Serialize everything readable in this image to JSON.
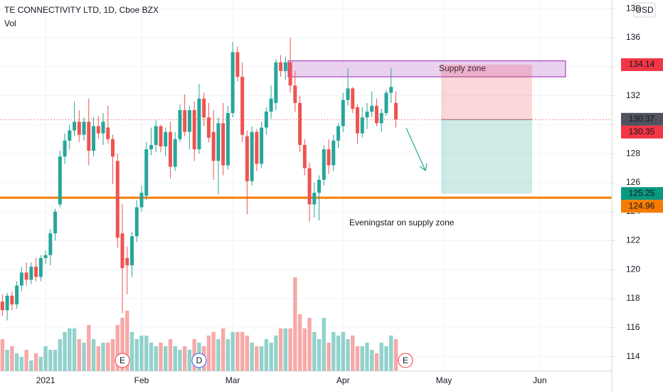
{
  "chart_data": {
    "type": "candlestick",
    "title": "TE CONNECTIVITY LTD, 1D, Cboe BZX",
    "volume_label": "Vol",
    "currency": "USD",
    "up_color": "#26a69a",
    "down_color": "#ef5350",
    "ylim": [
      113.0,
      138.6
    ],
    "yticks": [
      114,
      116,
      118,
      120,
      122,
      124,
      126,
      128,
      130,
      132,
      134,
      136,
      138
    ],
    "xlim": [
      -0.5,
      127
    ],
    "xticks": [
      {
        "value": 9,
        "label": "2021"
      },
      {
        "value": 29,
        "label": "Feb"
      },
      {
        "value": 48,
        "label": "Mar"
      },
      {
        "value": 71,
        "label": "Apr"
      },
      {
        "value": 92,
        "label": "May"
      },
      {
        "value": 112,
        "label": "Jun"
      }
    ],
    "vlim": [
      0,
      400
    ],
    "candles": [
      [
        117.8,
        118.3,
        116.8,
        117.2
      ],
      [
        117.2,
        118.4,
        116.5,
        118.2
      ],
      [
        118.2,
        118.5,
        117.2,
        117.6
      ],
      [
        117.6,
        119.2,
        117.3,
        118.9
      ],
      [
        118.9,
        120.2,
        118.5,
        119.8
      ],
      [
        119.8,
        120.5,
        118.9,
        119.3
      ],
      [
        119.3,
        120.5,
        119,
        120.2
      ],
      [
        120.2,
        120.8,
        119.2,
        119.5
      ],
      [
        119.5,
        121,
        119.2,
        120.8
      ],
      [
        120.8,
        121.3,
        120.4,
        121
      ],
      [
        121,
        122.8,
        120.3,
        122.5
      ],
      [
        122.5,
        124.2,
        122,
        124
      ],
      [
        124.5,
        128.2,
        124.3,
        127.8
      ],
      [
        127.8,
        129.4,
        127.3,
        128.9
      ],
      [
        128.9,
        130,
        128.3,
        129.6
      ],
      [
        129.6,
        131.6,
        129.2,
        130.2
      ],
      [
        130.2,
        131,
        128.8,
        129.3
      ],
      [
        129.3,
        130.5,
        128.9,
        130.2
      ],
      [
        130.2,
        131.8,
        127.2,
        128.2
      ],
      [
        128.2,
        130.5,
        127.8,
        129.9
      ],
      [
        129.9,
        130.6,
        129,
        129.4
      ],
      [
        129.4,
        130.8,
        128.6,
        130.2
      ],
      [
        129.8,
        131.3,
        128.7,
        129
      ],
      [
        129,
        129.3,
        125.9,
        127.8
      ],
      [
        127.5,
        128,
        121.5,
        122.2
      ],
      [
        122.5,
        124.5,
        117,
        120.1
      ],
      [
        120.8,
        121.6,
        118.3,
        120.3
      ],
      [
        120.3,
        122.6,
        119.5,
        122.3
      ],
      [
        122.3,
        124.8,
        121.9,
        124.3
      ],
      [
        124.3,
        125.8,
        124,
        125.3
      ],
      [
        125.1,
        128.8,
        124.8,
        128.3
      ],
      [
        128.3,
        129.8,
        127.9,
        128.6
      ],
      [
        128.6,
        130.3,
        128.1,
        129.9
      ],
      [
        129.9,
        130,
        128.1,
        128.5
      ],
      [
        128.5,
        129.8,
        127.8,
        129.5
      ],
      [
        129.5,
        130.2,
        126.3,
        127.1
      ],
      [
        127.1,
        129.5,
        126.8,
        129
      ],
      [
        129,
        131.4,
        128.8,
        131
      ],
      [
        131,
        132.1,
        129.2,
        129.5
      ],
      [
        129.5,
        131.3,
        128.3,
        131
      ],
      [
        131,
        131.6,
        127.5,
        128.3
      ],
      [
        128.3,
        132.8,
        128,
        131.8
      ],
      [
        131.8,
        132.2,
        129.9,
        130.5
      ],
      [
        130.5,
        131.5,
        128.8,
        129.1
      ],
      [
        129.5,
        131,
        126.2,
        127.5
      ],
      [
        127.5,
        130.5,
        125.2,
        130.1
      ],
      [
        130.1,
        131.5,
        126.5,
        127.2
      ],
      [
        127.2,
        131.3,
        126.9,
        130.8
      ],
      [
        130.8,
        135.7,
        130.5,
        135
      ],
      [
        135,
        135.4,
        133,
        133.3
      ],
      [
        133.3,
        134.3,
        128.8,
        129.3
      ],
      [
        129.2,
        129.6,
        123.8,
        126.1
      ],
      [
        126.1,
        129.9,
        125.8,
        129.5
      ],
      [
        129.5,
        129.7,
        126.8,
        127.3
      ],
      [
        127.3,
        130.2,
        127,
        129.8
      ],
      [
        129.8,
        131.2,
        129.3,
        130.9
      ],
      [
        130.9,
        132.7,
        130.4,
        131.8
      ],
      [
        131.5,
        134.5,
        131,
        134.3
      ],
      [
        134.3,
        134.8,
        133.3,
        133.7
      ],
      [
        133.7,
        134.7,
        133.1,
        134.3
      ],
      [
        134.3,
        136,
        132.2,
        132.7
      ],
      [
        132.7,
        133.7,
        130.9,
        131.5
      ],
      [
        131.5,
        132,
        128.1,
        128.6
      ],
      [
        128.6,
        129,
        126.5,
        127
      ],
      [
        127,
        127.4,
        123.3,
        124.5
      ],
      [
        124.5,
        126,
        123.6,
        125.3
      ],
      [
        125.3,
        126.5,
        123.4,
        126.2
      ],
      [
        126.2,
        128.6,
        125.8,
        128.3
      ],
      [
        128.3,
        129,
        126.6,
        127.2
      ],
      [
        127.2,
        129.3,
        126.8,
        128.9
      ],
      [
        128.9,
        130.1,
        128.4,
        129.9
      ],
      [
        129.9,
        132.2,
        129.5,
        131.7
      ],
      [
        131.7,
        133.9,
        131.3,
        132.5
      ],
      [
        132.5,
        132.6,
        130.8,
        131.1
      ],
      [
        131.2,
        131.4,
        128.7,
        129.4
      ],
      [
        129.4,
        131.2,
        129.1,
        130.5
      ],
      [
        130.5,
        131.5,
        129.7,
        130.9
      ],
      [
        130.9,
        132.3,
        130.5,
        131.3
      ],
      [
        131.3,
        131.8,
        129.9,
        130.1
      ],
      [
        130.1,
        131.1,
        129.5,
        130.8
      ],
      [
        130.8,
        132.4,
        130.6,
        132.2
      ],
      [
        132.2,
        133.9,
        131.5,
        132.6
      ],
      [
        131.5,
        132.3,
        129.8,
        130.35
      ]
    ],
    "volume": [
      45,
      30,
      35,
      25,
      20,
      30,
      15,
      25,
      20,
      35,
      30,
      30,
      45,
      55,
      60,
      60,
      45,
      40,
      65,
      45,
      35,
      40,
      40,
      45,
      65,
      75,
      85,
      55,
      45,
      50,
      50,
      40,
      35,
      40,
      35,
      45,
      35,
      30,
      35,
      30,
      45,
      40,
      35,
      50,
      55,
      45,
      60,
      45,
      55,
      55,
      55,
      50,
      40,
      35,
      35,
      45,
      40,
      50,
      60,
      60,
      60,
      132,
      80,
      60,
      75,
      55,
      45,
      75,
      40,
      55,
      50,
      55,
      45,
      50,
      35,
      35,
      40,
      30,
      25,
      40,
      35,
      50,
      45
    ],
    "events": [
      {
        "index": 25,
        "label": "E"
      },
      {
        "index": 41,
        "label": "D"
      },
      {
        "index": 84,
        "label": "E"
      }
    ],
    "supply_zone": {
      "text": "Supply zone",
      "top": 134.4,
      "bottom": 133.3
    },
    "position": {
      "stop": 134.14,
      "entry": 130.35,
      "target": 125.25
    },
    "support": {
      "value": 124.96,
      "color": "#f57c00"
    },
    "note": "Eveningstar on supply zone",
    "price_labels": [
      {
        "value": 134.14,
        "color": "#f23645"
      },
      {
        "value": 130.37,
        "color": "#50535e"
      },
      {
        "value": 130.35,
        "color": "#f23645"
      },
      {
        "value": 125.25,
        "color": "#089981"
      },
      {
        "value": 124.96,
        "color": "#f57c00"
      }
    ]
  }
}
